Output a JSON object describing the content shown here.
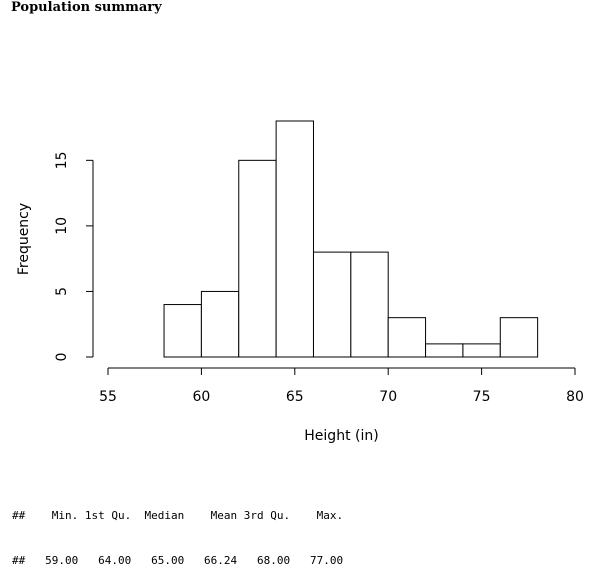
{
  "heading": "Population summary",
  "chart_data": {
    "type": "bar",
    "title": "",
    "xlabel": "Height (in)",
    "ylabel": "Frequency",
    "bins": [
      {
        "from": 58,
        "to": 60,
        "count": 4
      },
      {
        "from": 60,
        "to": 62,
        "count": 5
      },
      {
        "from": 62,
        "to": 64,
        "count": 15
      },
      {
        "from": 64,
        "to": 66,
        "count": 18
      },
      {
        "from": 66,
        "to": 68,
        "count": 8
      },
      {
        "from": 68,
        "to": 70,
        "count": 8
      },
      {
        "from": 70,
        "to": 72,
        "count": 3
      },
      {
        "from": 72,
        "to": 74,
        "count": 1
      },
      {
        "from": 74,
        "to": 76,
        "count": 1
      },
      {
        "from": 76,
        "to": 78,
        "count": 3
      }
    ],
    "xlim": [
      55,
      80
    ],
    "ylim": [
      0,
      18
    ],
    "xticks": [
      "55",
      "60",
      "65",
      "70",
      "75",
      "80"
    ],
    "yticks": [
      "0",
      "5",
      "10",
      "15"
    ],
    "bar_fill": "#ffffff",
    "bar_stroke": "#000000",
    "grid": false
  },
  "summary": {
    "prefix": "##",
    "header": "    Min. 1st Qu.  Median    Mean 3rd Qu.    Max. ",
    "values": "   59.00   64.00   65.00   66.24   68.00   77.00 "
  }
}
